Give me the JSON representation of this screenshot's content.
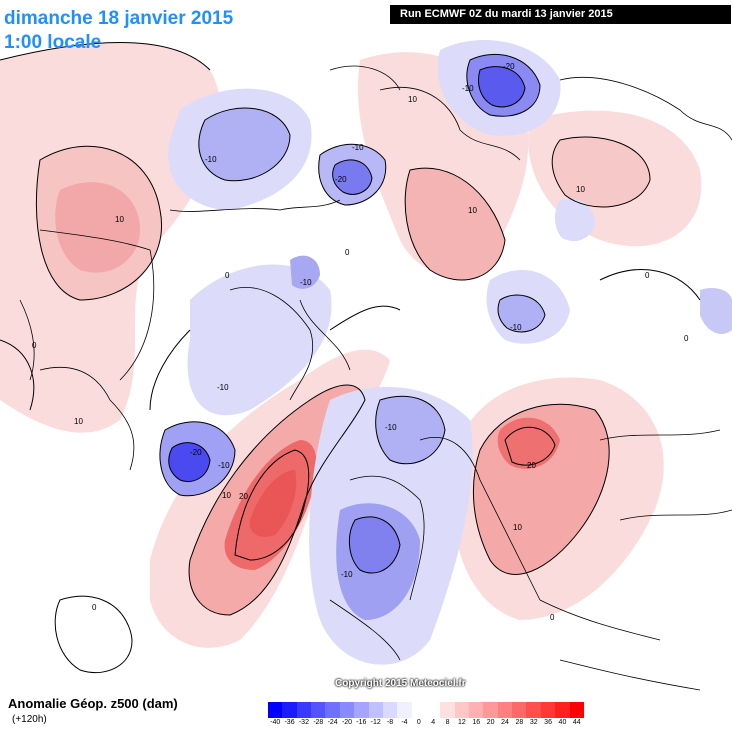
{
  "header": {
    "date": "dimanche 18 janvier 2015",
    "time": "1:00 locale",
    "run": "Run ECMWF 0Z du mardi 13 janvier 2015"
  },
  "footer": {
    "title": "Anomalie Géop. z500 (dam)",
    "subtitle": "(+120h)",
    "copyright": "Copyright 2015 Meteociel.fr"
  },
  "colors": {
    "negative_strong": "#4a4af0",
    "negative_mid": "#8e8ef5",
    "negative_light": "#dcdcfa",
    "positive_light": "#fadcdc",
    "positive_mid": "#f5a0a0",
    "positive_strong": "#ee5050"
  },
  "scale": {
    "values": [
      "-40",
      "-36",
      "-32",
      "-28",
      "-24",
      "-20",
      "-16",
      "-12",
      "-8",
      "-4",
      "0",
      "4",
      "8",
      "12",
      "16",
      "20",
      "24",
      "28",
      "32",
      "36",
      "40",
      "44"
    ],
    "colors": [
      "#0000ff",
      "#1c1cff",
      "#3a3aff",
      "#5555ff",
      "#7070ff",
      "#8a8aff",
      "#a5a5ff",
      "#c0c0ff",
      "#dadaff",
      "#f0f0ff",
      "#ffffff",
      "#ffffff",
      "#ffe0e0",
      "#ffc8c8",
      "#ffb0b0",
      "#ff9898",
      "#ff8080",
      "#ff6868",
      "#ff5050",
      "#ff3838",
      "#ff2020",
      "#ff0000"
    ]
  },
  "contour_labels": [
    "-20",
    "-10",
    "-10",
    "-20",
    "-10",
    "-20",
    "-10",
    "-10",
    "-10",
    "-10",
    "-20",
    "-10",
    "-10",
    "-10",
    "-10",
    "10",
    "10",
    "10",
    "10",
    "10",
    "10",
    "10",
    "20",
    "20",
    "20",
    "10",
    "0",
    "0",
    "0",
    "0",
    "0",
    "0",
    "0"
  ]
}
